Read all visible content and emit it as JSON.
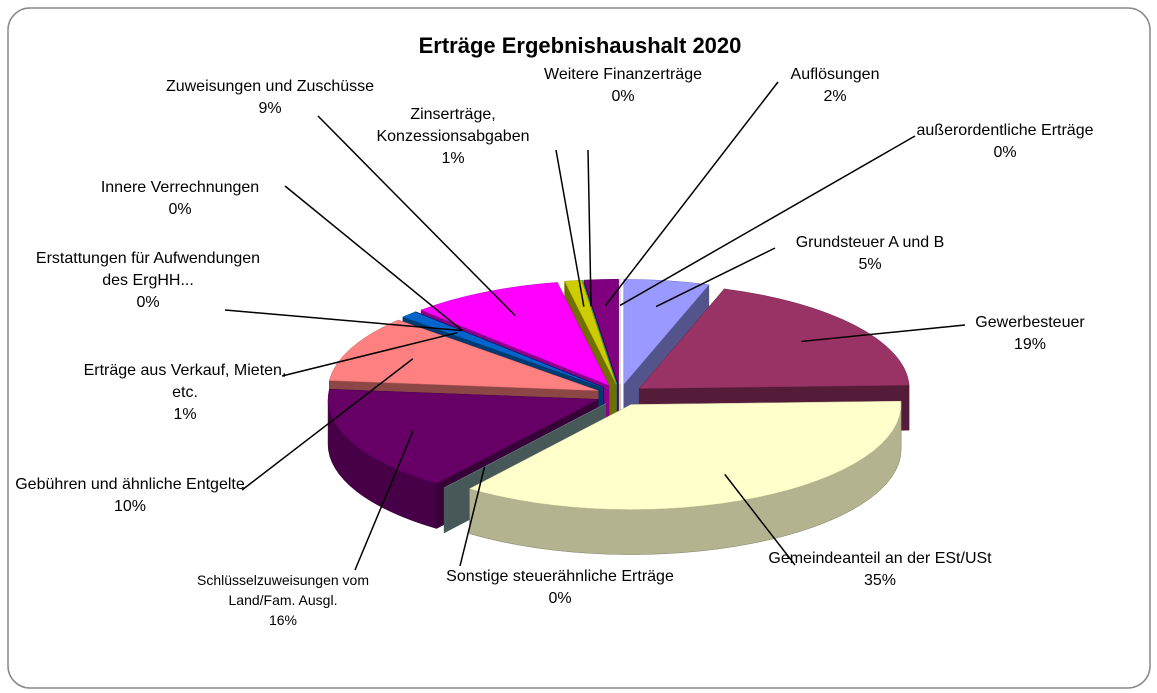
{
  "chart_data": {
    "type": "pie",
    "title": "Erträge Ergebnishaushalt 2020",
    "categories": [
      "Grundsteuer A und B",
      "Gewerbesteuer",
      "Gemeindeanteil an der ESt/USt",
      "Sonstige steuerähnliche Erträge",
      "Schlüsselzuweisungen vom Land/Fam. Ausgl.",
      "Gebühren und ähnliche Entgelte",
      "Erträge aus Verkauf, Mieten, etc.",
      "Erstattungen für Aufwendungen des ErgHH...",
      "Innere Verrechnungen",
      "Zuweisungen und Zuschüsse",
      "Zinserträge, Konzessionsabgaben",
      "Weitere Finanzerträge",
      "Auflösungen",
      "außerordentliche Erträge"
    ],
    "values": [
      5,
      19,
      35,
      0,
      16,
      10,
      1,
      0,
      0,
      9,
      1,
      0,
      2,
      0
    ],
    "value_labels": [
      "5%",
      "19%",
      "35%",
      "0%",
      "16%",
      "10%",
      "1%",
      "0%",
      "0%",
      "9%",
      "1%",
      "0%",
      "2%",
      "0%"
    ],
    "colors": [
      "#9999ff",
      "#993366",
      "#ffffcc",
      "#80a0a0",
      "#660066",
      "#ff8080",
      "#0066cc",
      "#ccccff",
      "#000080",
      "#ff00ff",
      "#cccc00",
      "#00cccc",
      "#800080",
      "#ffffff"
    ]
  }
}
